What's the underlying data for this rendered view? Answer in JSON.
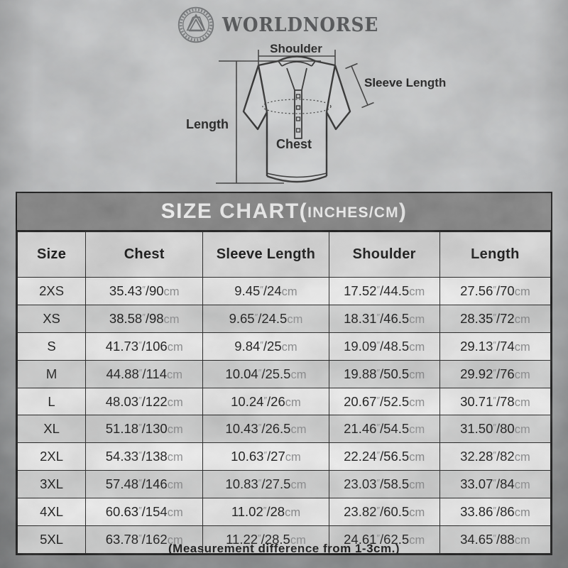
{
  "brand": {
    "name": "WORLDNORSE",
    "emblem_icon": "valknut-emblem"
  },
  "diagram": {
    "labels": {
      "shoulder": "Shoulder",
      "sleeve_length": "Sleeve Length",
      "length": "Length",
      "chest": "Chest"
    }
  },
  "size_chart": {
    "title_main": "SIZE CHART(",
    "title_unit": "INCHES/CM",
    "title_close": ")"
  },
  "footnote": "(Measurement difference from 1-3cm.)",
  "colors": {
    "title_band": "#8b8b8b",
    "header_row": "#e5e5e5",
    "row_white": "#fafafa",
    "row_shade": "#dcdddd",
    "border": "#1c1c1c",
    "unit_text": "#8f9092",
    "background": "#c0c3c5"
  },
  "chart_data": {
    "type": "table",
    "title": "SIZE CHART(INCHES/CM)",
    "columns": [
      "Size",
      "Chest",
      "Sleeve Length",
      "Shoulder",
      "Length"
    ],
    "rows": [
      [
        "2XS",
        "35.43″/90cm",
        "9.45″/24cm",
        "17.52″/44.5cm",
        "27.56″/70cm"
      ],
      [
        "XS",
        "38.58″/98cm",
        "9.65″/24.5cm",
        "18.31″/46.5cm",
        "28.35″/72cm"
      ],
      [
        "S",
        "41.73″/106cm",
        "9.84″/25cm",
        "19.09″/48.5cm",
        "29.13″/74cm"
      ],
      [
        "M",
        "44.88″/114cm",
        "10.04″/25.5cm",
        "19.88″/50.5cm",
        "29.92″/76cm"
      ],
      [
        "L",
        "48.03″/122cm",
        "10.24″/26cm",
        "20.67″/52.5cm",
        "30.71″/78cm"
      ],
      [
        "XL",
        "51.18″/130cm",
        "10.43″/26.5cm",
        "21.46″/54.5cm",
        "31.50″/80cm"
      ],
      [
        "2XL",
        "54.33″/138cm",
        "10.63″/27cm",
        "22.24″/56.5cm",
        "32.28″/82cm"
      ],
      [
        "3XL",
        "57.48″/146cm",
        "10.83″/27.5cm",
        "23.03″/58.5cm",
        "33.07″/84cm"
      ],
      [
        "4XL",
        "60.63″/154cm",
        "11.02″/28cm",
        "23.82″/60.5cm",
        "33.86″/86cm"
      ],
      [
        "5XL",
        "63.78″/162cm",
        "11.22″/28.5cm",
        "24.61″/62.5cm",
        "34.65″/88cm"
      ]
    ]
  }
}
